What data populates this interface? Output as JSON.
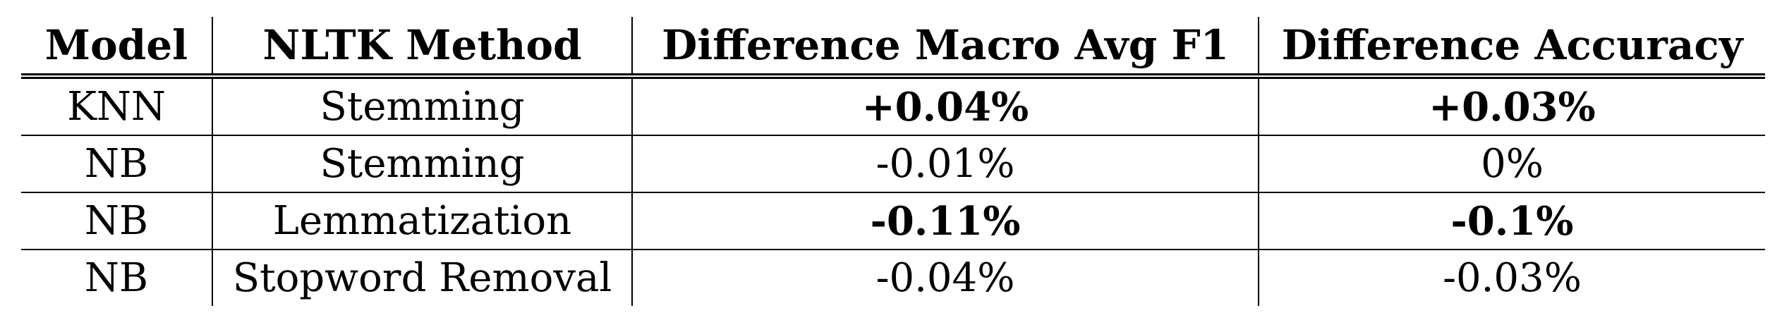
{
  "table": {
    "headers": [
      "Model",
      "NLTK Method",
      "Difference Macro Avg F1",
      "Difference Accuracy"
    ],
    "rows": [
      {
        "model": "KNN",
        "method": "Stemming",
        "diff_f1": "+0.04%",
        "diff_accuracy": "+0.03%",
        "bold_values": true
      },
      {
        "model": "NB",
        "method": "Stemming",
        "diff_f1": "-0.01%",
        "diff_accuracy": "0%",
        "bold_values": false
      },
      {
        "model": "NB",
        "method": "Lemmatization",
        "diff_f1": "-0.11%",
        "diff_accuracy": "-0.1%",
        "bold_values": true
      },
      {
        "model": "NB",
        "method": "Stopword Removal",
        "diff_f1": "-0.04%",
        "diff_accuracy": "-0.03%",
        "bold_values": false
      }
    ]
  }
}
